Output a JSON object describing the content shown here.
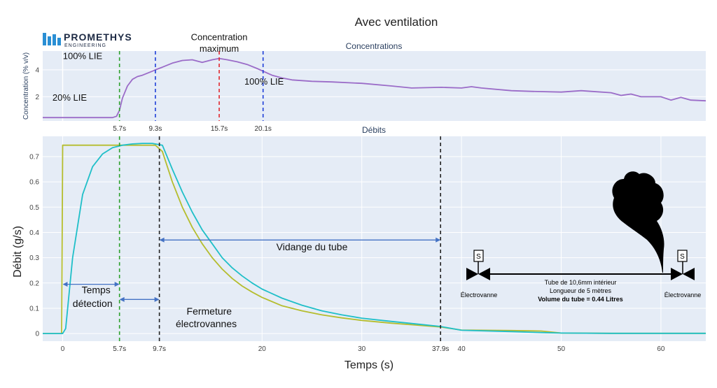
{
  "figure": {
    "title": "Avec ventilation",
    "xlabel": "Temps (s)",
    "logo": {
      "name": "PROMETHYS",
      "subtitle": "ENGINEERING"
    }
  },
  "chart_data": [
    {
      "type": "line",
      "title": "Concentrations",
      "xlabel": "",
      "ylabel": "Concentration (% v/v)",
      "xlim": [
        -2,
        64.5
      ],
      "ylim": [
        0.2,
        5.4
      ],
      "y_ticks": [
        2,
        4
      ],
      "grid": true,
      "series": [
        {
          "name": "Concentration",
          "color": "#9b6cc8",
          "x": [
            -2,
            0,
            3,
            5,
            5.4,
            5.7,
            6,
            6.5,
            7,
            7.5,
            8,
            9,
            9.3,
            10,
            11,
            12,
            13,
            14,
            15,
            15.7,
            16.5,
            17.5,
            18.5,
            19.5,
            20.1,
            21,
            22,
            23,
            24,
            25,
            27,
            30,
            33,
            35,
            38,
            40,
            41,
            42,
            45,
            47,
            50,
            52,
            53,
            55,
            56,
            57,
            58,
            60,
            61,
            62,
            63,
            64.5
          ],
          "y": [
            0.45,
            0.45,
            0.45,
            0.45,
            0.55,
            1.0,
            1.9,
            2.8,
            3.3,
            3.5,
            3.6,
            3.9,
            4.0,
            4.2,
            4.5,
            4.7,
            4.75,
            4.55,
            4.75,
            4.85,
            4.75,
            4.6,
            4.4,
            4.1,
            3.9,
            3.6,
            3.4,
            3.25,
            3.2,
            3.15,
            3.1,
            3.0,
            2.8,
            2.65,
            2.7,
            2.65,
            2.75,
            2.65,
            2.45,
            2.4,
            2.35,
            2.45,
            2.4,
            2.3,
            2.1,
            2.2,
            2.0,
            2.0,
            1.75,
            1.95,
            1.75,
            1.7
          ]
        }
      ],
      "vlines": [
        {
          "x": 5.7,
          "color": "#2ca02c",
          "label": "5.7s"
        },
        {
          "x": 9.3,
          "color": "#1f3fd8",
          "label": "9.3s"
        },
        {
          "x": 15.7,
          "color": "#e0282e",
          "label": "15.7s"
        },
        {
          "x": 20.1,
          "color": "#1f3fd8",
          "label": "20.1s"
        }
      ],
      "annotations": [
        {
          "text": "20% LIE",
          "x": 0.7,
          "y": 1.7
        },
        {
          "text": "100% LIE",
          "x": 2.0,
          "y": 4.8
        },
        {
          "text": "Concentration",
          "x": 15.7,
          "y": 6.2
        },
        {
          "text": "maximum",
          "x": 15.7,
          "y": 5.35
        },
        {
          "text": "100% LIE",
          "x": 20.2,
          "y": 2.9
        }
      ]
    },
    {
      "type": "line",
      "title": "Débits",
      "xlabel": "Temps (s)",
      "ylabel": "Débit (g/s)",
      "xlim": [
        -2,
        64.5
      ],
      "ylim": [
        -0.03,
        0.78
      ],
      "x_ticks": [
        0,
        20,
        30,
        40,
        50,
        60
      ],
      "x_tick_labels": [
        "0",
        "20",
        "30",
        "40",
        "50",
        "60"
      ],
      "y_ticks": [
        0,
        0.1,
        0.2,
        0.3,
        0.4,
        0.5,
        0.6,
        0.7
      ],
      "y_tick_labels": [
        "0",
        "0.1",
        "0.2",
        "0.3",
        "0.4",
        "0.5",
        "0.6",
        "0.7"
      ],
      "grid": true,
      "series": [
        {
          "name": "Débit (jaune)",
          "color": "#b5bd2e",
          "x": [
            -2,
            -0.1,
            0,
            9.3,
            10,
            11,
            12,
            13,
            14,
            15,
            16,
            17,
            18,
            19,
            20,
            22,
            24,
            26,
            28,
            30,
            33,
            35,
            37.9,
            40,
            45,
            48,
            50,
            55,
            60,
            64.5
          ],
          "y": [
            0,
            0,
            0.745,
            0.745,
            0.72,
            0.6,
            0.5,
            0.42,
            0.355,
            0.3,
            0.255,
            0.218,
            0.188,
            0.164,
            0.143,
            0.11,
            0.09,
            0.074,
            0.062,
            0.052,
            0.041,
            0.035,
            0.026,
            0.014,
            0.012,
            0.01,
            0.002,
            0.001,
            0.001,
            0.001
          ]
        },
        {
          "name": "Débit (cyan)",
          "color": "#1fbfc8",
          "x": [
            -2,
            0,
            0.3,
            1,
            2,
            3,
            4,
            5,
            6,
            7,
            8,
            9,
            10,
            11,
            12,
            13,
            14,
            15,
            16,
            17,
            18,
            19,
            20,
            22,
            24,
            26,
            28,
            30,
            33,
            35,
            37.9,
            40,
            45,
            48,
            50,
            55,
            60,
            64.5
          ],
          "y": [
            0,
            0,
            0.02,
            0.3,
            0.55,
            0.66,
            0.71,
            0.735,
            0.745,
            0.75,
            0.752,
            0.752,
            0.745,
            0.65,
            0.56,
            0.48,
            0.41,
            0.355,
            0.3,
            0.26,
            0.228,
            0.2,
            0.176,
            0.14,
            0.112,
            0.09,
            0.074,
            0.061,
            0.048,
            0.04,
            0.028,
            0.013,
            0.008,
            0.004,
            0.002,
            0.001,
            0.001,
            0.001
          ]
        }
      ],
      "vlines": [
        {
          "x": 5.7,
          "color": "#2ca02c",
          "label": "5.7s"
        },
        {
          "x": 9.7,
          "color": "#222222",
          "label": "9.7s"
        },
        {
          "x": 37.9,
          "color": "#222222",
          "label": "37.9s"
        }
      ],
      "arrows": [
        {
          "x1": 0,
          "x2": 5.7,
          "y": 0.195
        },
        {
          "x1": 5.7,
          "x2": 9.7,
          "y": 0.135
        },
        {
          "x1": 9.7,
          "x2": 37.9,
          "y": 0.37
        }
      ],
      "annotations": [
        {
          "text": "Temps",
          "x": 3.35,
          "y": 0.16
        },
        {
          "text": "détection",
          "x": 3.0,
          "y": 0.105
        },
        {
          "text": "Fermeture",
          "x": 14.7,
          "y": 0.075
        },
        {
          "text": "électrovannes",
          "x": 14.4,
          "y": 0.025
        },
        {
          "text": "Vidange du tube",
          "x": 25.0,
          "y": 0.33
        }
      ]
    }
  ],
  "diagram": {
    "left_valve_label": "Électrovanne",
    "right_valve_label": "Électrovanne",
    "tube_line1": "Tube de 10,6mm intérieur",
    "tube_line2": "Longueur de 5 mètres",
    "tube_line3": "Volume du tube = 0.44 Litres",
    "solenoid_letter": "S"
  }
}
